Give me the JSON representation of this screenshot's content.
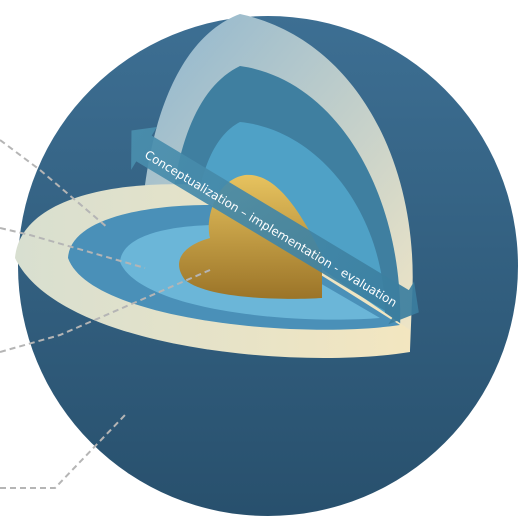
{
  "arrow": {
    "label": "Conceptualization – implementation - evaluation"
  }
}
